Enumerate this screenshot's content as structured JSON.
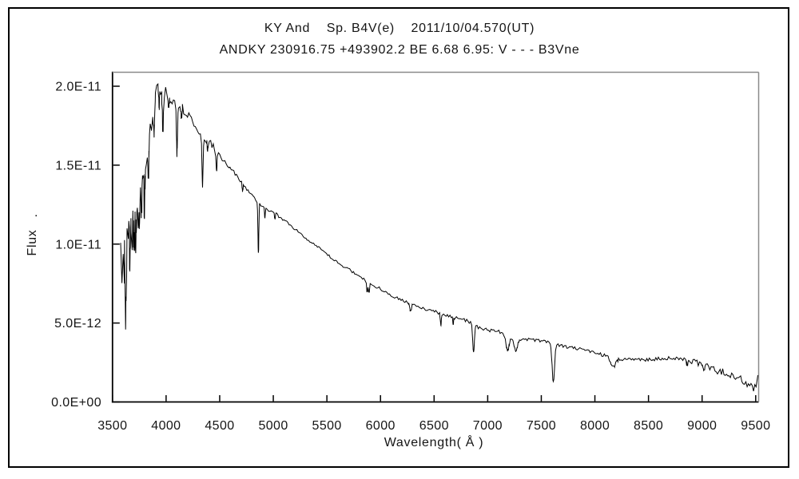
{
  "window": {
    "background": "#ffffff",
    "border_color": "#000000"
  },
  "chart_data": {
    "type": "line",
    "title": "KY And    Sp. B4V(e)    2011/10/04.570(UT)",
    "subtitle": "ANDKY 230916.75 +493902.2 BE 6.68 6.95: V - - - B3Vne",
    "xlabel": "Wavelength( Å )",
    "ylabel": "Flux",
    "ylabel_dot": ".",
    "line_color": "#000000",
    "axis_color": "#000000",
    "frame_light_color": "#8a8a8a",
    "text_color": "#151515",
    "grid": false,
    "legend": false,
    "xlim": [
      3500,
      9550
    ],
    "ylim": [
      0,
      2.09e-11
    ],
    "x_ticks": [
      3500,
      4000,
      4500,
      5000,
      5500,
      6000,
      6500,
      7000,
      7500,
      8000,
      8500,
      9000,
      9500
    ],
    "y_tick_values_1e11": [
      0,
      0.5,
      1.0,
      1.5,
      2.0
    ],
    "y_tick_labels": [
      "0.0E+00",
      "5.0E-12",
      "1.0E-11",
      "1.5E-11",
      "2.0E-11"
    ],
    "flux_scale_note": "continuum/line/noise flux values are in units of 1e-11",
    "spectrum": {
      "x_start": 3576,
      "x_end": 9520,
      "step": 12,
      "noise_seed": 3,
      "continuum": [
        [
          3576,
          0.92
        ],
        [
          3610,
          0.97
        ],
        [
          3650,
          1.05
        ],
        [
          3690,
          1.12
        ],
        [
          3730,
          1.22
        ],
        [
          3770,
          1.35
        ],
        [
          3810,
          1.5
        ],
        [
          3850,
          1.72
        ],
        [
          3880,
          1.84
        ],
        [
          3905,
          1.95
        ],
        [
          3928,
          2.0
        ],
        [
          3955,
          1.96
        ],
        [
          3995,
          1.95
        ],
        [
          4035,
          1.93
        ],
        [
          4075,
          1.9
        ],
        [
          4115,
          1.87
        ],
        [
          4155,
          1.86
        ],
        [
          4200,
          1.83
        ],
        [
          4255,
          1.77
        ],
        [
          4310,
          1.71
        ],
        [
          4365,
          1.66
        ],
        [
          4415,
          1.645
        ],
        [
          4475,
          1.575
        ],
        [
          4535,
          1.525
        ],
        [
          4605,
          1.48
        ],
        [
          4705,
          1.39
        ],
        [
          4805,
          1.3
        ],
        [
          4905,
          1.235
        ],
        [
          5005,
          1.2
        ],
        [
          5105,
          1.15
        ],
        [
          5205,
          1.095
        ],
        [
          5305,
          1.04
        ],
        [
          5405,
          0.985
        ],
        [
          5505,
          0.93
        ],
        [
          5605,
          0.88
        ],
        [
          5705,
          0.84
        ],
        [
          5805,
          0.795
        ],
        [
          5905,
          0.75
        ],
        [
          6005,
          0.715
        ],
        [
          6105,
          0.675
        ],
        [
          6205,
          0.645
        ],
        [
          6305,
          0.615
        ],
        [
          6405,
          0.59
        ],
        [
          6505,
          0.575
        ],
        [
          6605,
          0.555
        ],
        [
          6705,
          0.535
        ],
        [
          6805,
          0.515
        ],
        [
          6905,
          0.475
        ],
        [
          7005,
          0.455
        ],
        [
          7105,
          0.445
        ],
        [
          7205,
          0.42
        ],
        [
          7305,
          0.39
        ],
        [
          7405,
          0.395
        ],
        [
          7505,
          0.39
        ],
        [
          7605,
          0.375
        ],
        [
          7705,
          0.35
        ],
        [
          7805,
          0.34
        ],
        [
          7905,
          0.33
        ],
        [
          8005,
          0.315
        ],
        [
          8105,
          0.29
        ],
        [
          8205,
          0.275
        ],
        [
          8305,
          0.27
        ],
        [
          8405,
          0.27
        ],
        [
          8505,
          0.27
        ],
        [
          8605,
          0.272
        ],
        [
          8705,
          0.278
        ],
        [
          8805,
          0.272
        ],
        [
          8905,
          0.258
        ],
        [
          9005,
          0.235
        ],
        [
          9105,
          0.21
        ],
        [
          9205,
          0.185
        ],
        [
          9305,
          0.155
        ],
        [
          9405,
          0.125
        ],
        [
          9475,
          0.095
        ],
        [
          9505,
          0.1
        ],
        [
          9520,
          0.17
        ]
      ],
      "absorption_lines": [
        [
          3622,
          0.4,
          5
        ],
        [
          3662,
          0.18,
          5
        ],
        [
          3700,
          0.16,
          5
        ],
        [
          3722,
          0.16,
          5
        ],
        [
          3750,
          0.17,
          5
        ],
        [
          3771,
          0.18,
          5
        ],
        [
          3798,
          0.2,
          5
        ],
        [
          3835,
          0.22,
          5
        ],
        [
          3889,
          0.22,
          5
        ],
        [
          3934,
          0.12,
          4
        ],
        [
          3970,
          0.23,
          5
        ],
        [
          4026,
          0.08,
          4
        ],
        [
          4101,
          0.3,
          5
        ],
        [
          4144,
          0.06,
          4
        ],
        [
          4340,
          0.32,
          5
        ],
        [
          4388,
          0.06,
          4
        ],
        [
          4471,
          0.13,
          4
        ],
        [
          4713,
          0.05,
          4
        ],
        [
          4861,
          0.33,
          4
        ],
        [
          4922,
          0.06,
          4
        ],
        [
          5016,
          0.04,
          4
        ],
        [
          5876,
          0.07,
          5
        ],
        [
          5893,
          0.06,
          5
        ],
        [
          6280,
          0.05,
          8
        ],
        [
          6563,
          0.08,
          5
        ],
        [
          6678,
          0.05,
          4
        ],
        [
          6868,
          0.17,
          8
        ],
        [
          7185,
          0.1,
          15
        ],
        [
          7262,
          0.08,
          15
        ],
        [
          7612,
          0.25,
          11
        ],
        [
          8170,
          0.06,
          22
        ],
        [
          8862,
          0.03,
          6
        ],
        [
          9015,
          0.03,
          6
        ]
      ],
      "noise_regions": [
        [
          3576,
          3660,
          0.2
        ],
        [
          3660,
          3745,
          0.15
        ],
        [
          3745,
          3815,
          0.11
        ],
        [
          3815,
          3910,
          0.065
        ],
        [
          3910,
          4000,
          0.045
        ],
        [
          4000,
          4210,
          0.035
        ],
        [
          4210,
          4510,
          0.02
        ],
        [
          4510,
          4910,
          0.013
        ],
        [
          4910,
          5610,
          0.01
        ],
        [
          5610,
          6510,
          0.009
        ],
        [
          6510,
          7010,
          0.012
        ],
        [
          7010,
          7610,
          0.011
        ],
        [
          7610,
          8110,
          0.011
        ],
        [
          8110,
          8810,
          0.012
        ],
        [
          8810,
          9110,
          0.018
        ],
        [
          9110,
          9360,
          0.024
        ],
        [
          9360,
          9520,
          0.028
        ]
      ]
    }
  }
}
